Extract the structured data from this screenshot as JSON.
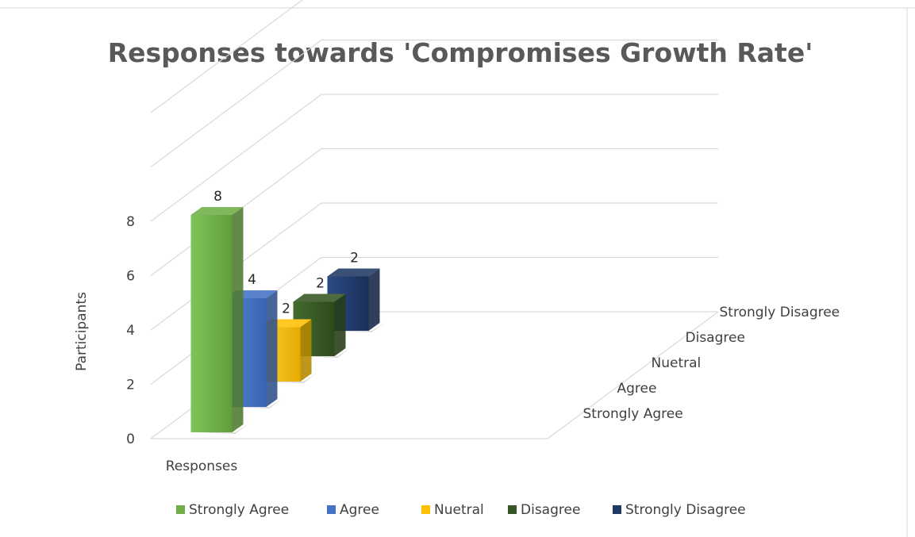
{
  "chart_data": {
    "type": "bar",
    "title": "Responses towards 'Compromises Growth Rate'",
    "ylabel": "Participants",
    "xlabel": "",
    "categories": [
      "Responses"
    ],
    "depth_labels": [
      "Strongly Agree",
      "Agree",
      "Nuetral",
      "Disagree",
      "Strongly Disagree"
    ],
    "y_ticks": [
      "0",
      "2",
      "4",
      "6",
      "8"
    ],
    "ylim": [
      0,
      8
    ],
    "series": [
      {
        "name": "Strongly Agree",
        "values": [
          8
        ],
        "color": "#70ad47"
      },
      {
        "name": "Agree",
        "values": [
          4
        ],
        "color": "#4472c4"
      },
      {
        "name": "Nuetral",
        "values": [
          2
        ],
        "color": "#ffc000"
      },
      {
        "name": "Disagree",
        "values": [
          2
        ],
        "color": "#375623"
      },
      {
        "name": "Strongly Disagree",
        "values": [
          2
        ],
        "color": "#203864"
      }
    ],
    "data_labels": [
      "8",
      "4",
      "2",
      "2",
      "2"
    ],
    "grid": true,
    "legend_position": "bottom"
  }
}
